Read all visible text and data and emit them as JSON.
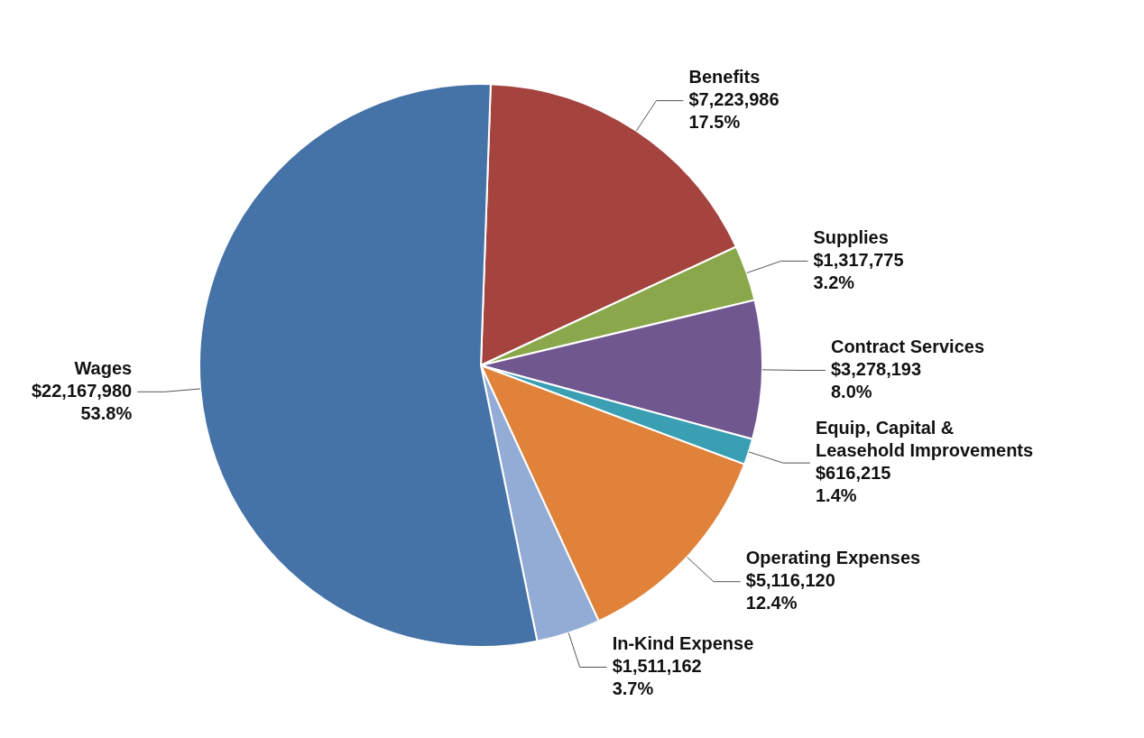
{
  "chart_data": {
    "type": "pie",
    "categories": [
      "Benefits",
      "Supplies",
      "Contract Services",
      "Equip, Capital & Leasehold Improvements",
      "Operating Expenses",
      "In-Kind Expense",
      "Wages"
    ],
    "values": [
      7223986,
      1317775,
      3278193,
      616215,
      5116120,
      1511162,
      22167980
    ],
    "value_labels": [
      "$7,223,986\n17.5%",
      "$1,317,775\n3.2%",
      "$3,278,193\n8.0%",
      "$616,215\n1.4%",
      "$5,116,120\n12.4%",
      "$1,511,162\n3.7%",
      "$22,167,980\n53.8%"
    ],
    "colors": [
      "#a5443f",
      "#8aa84b",
      "#71578f",
      "#3b9fb4",
      "#e0823a",
      "#93acd5",
      "#4572a7"
    ],
    "legend": false
  }
}
